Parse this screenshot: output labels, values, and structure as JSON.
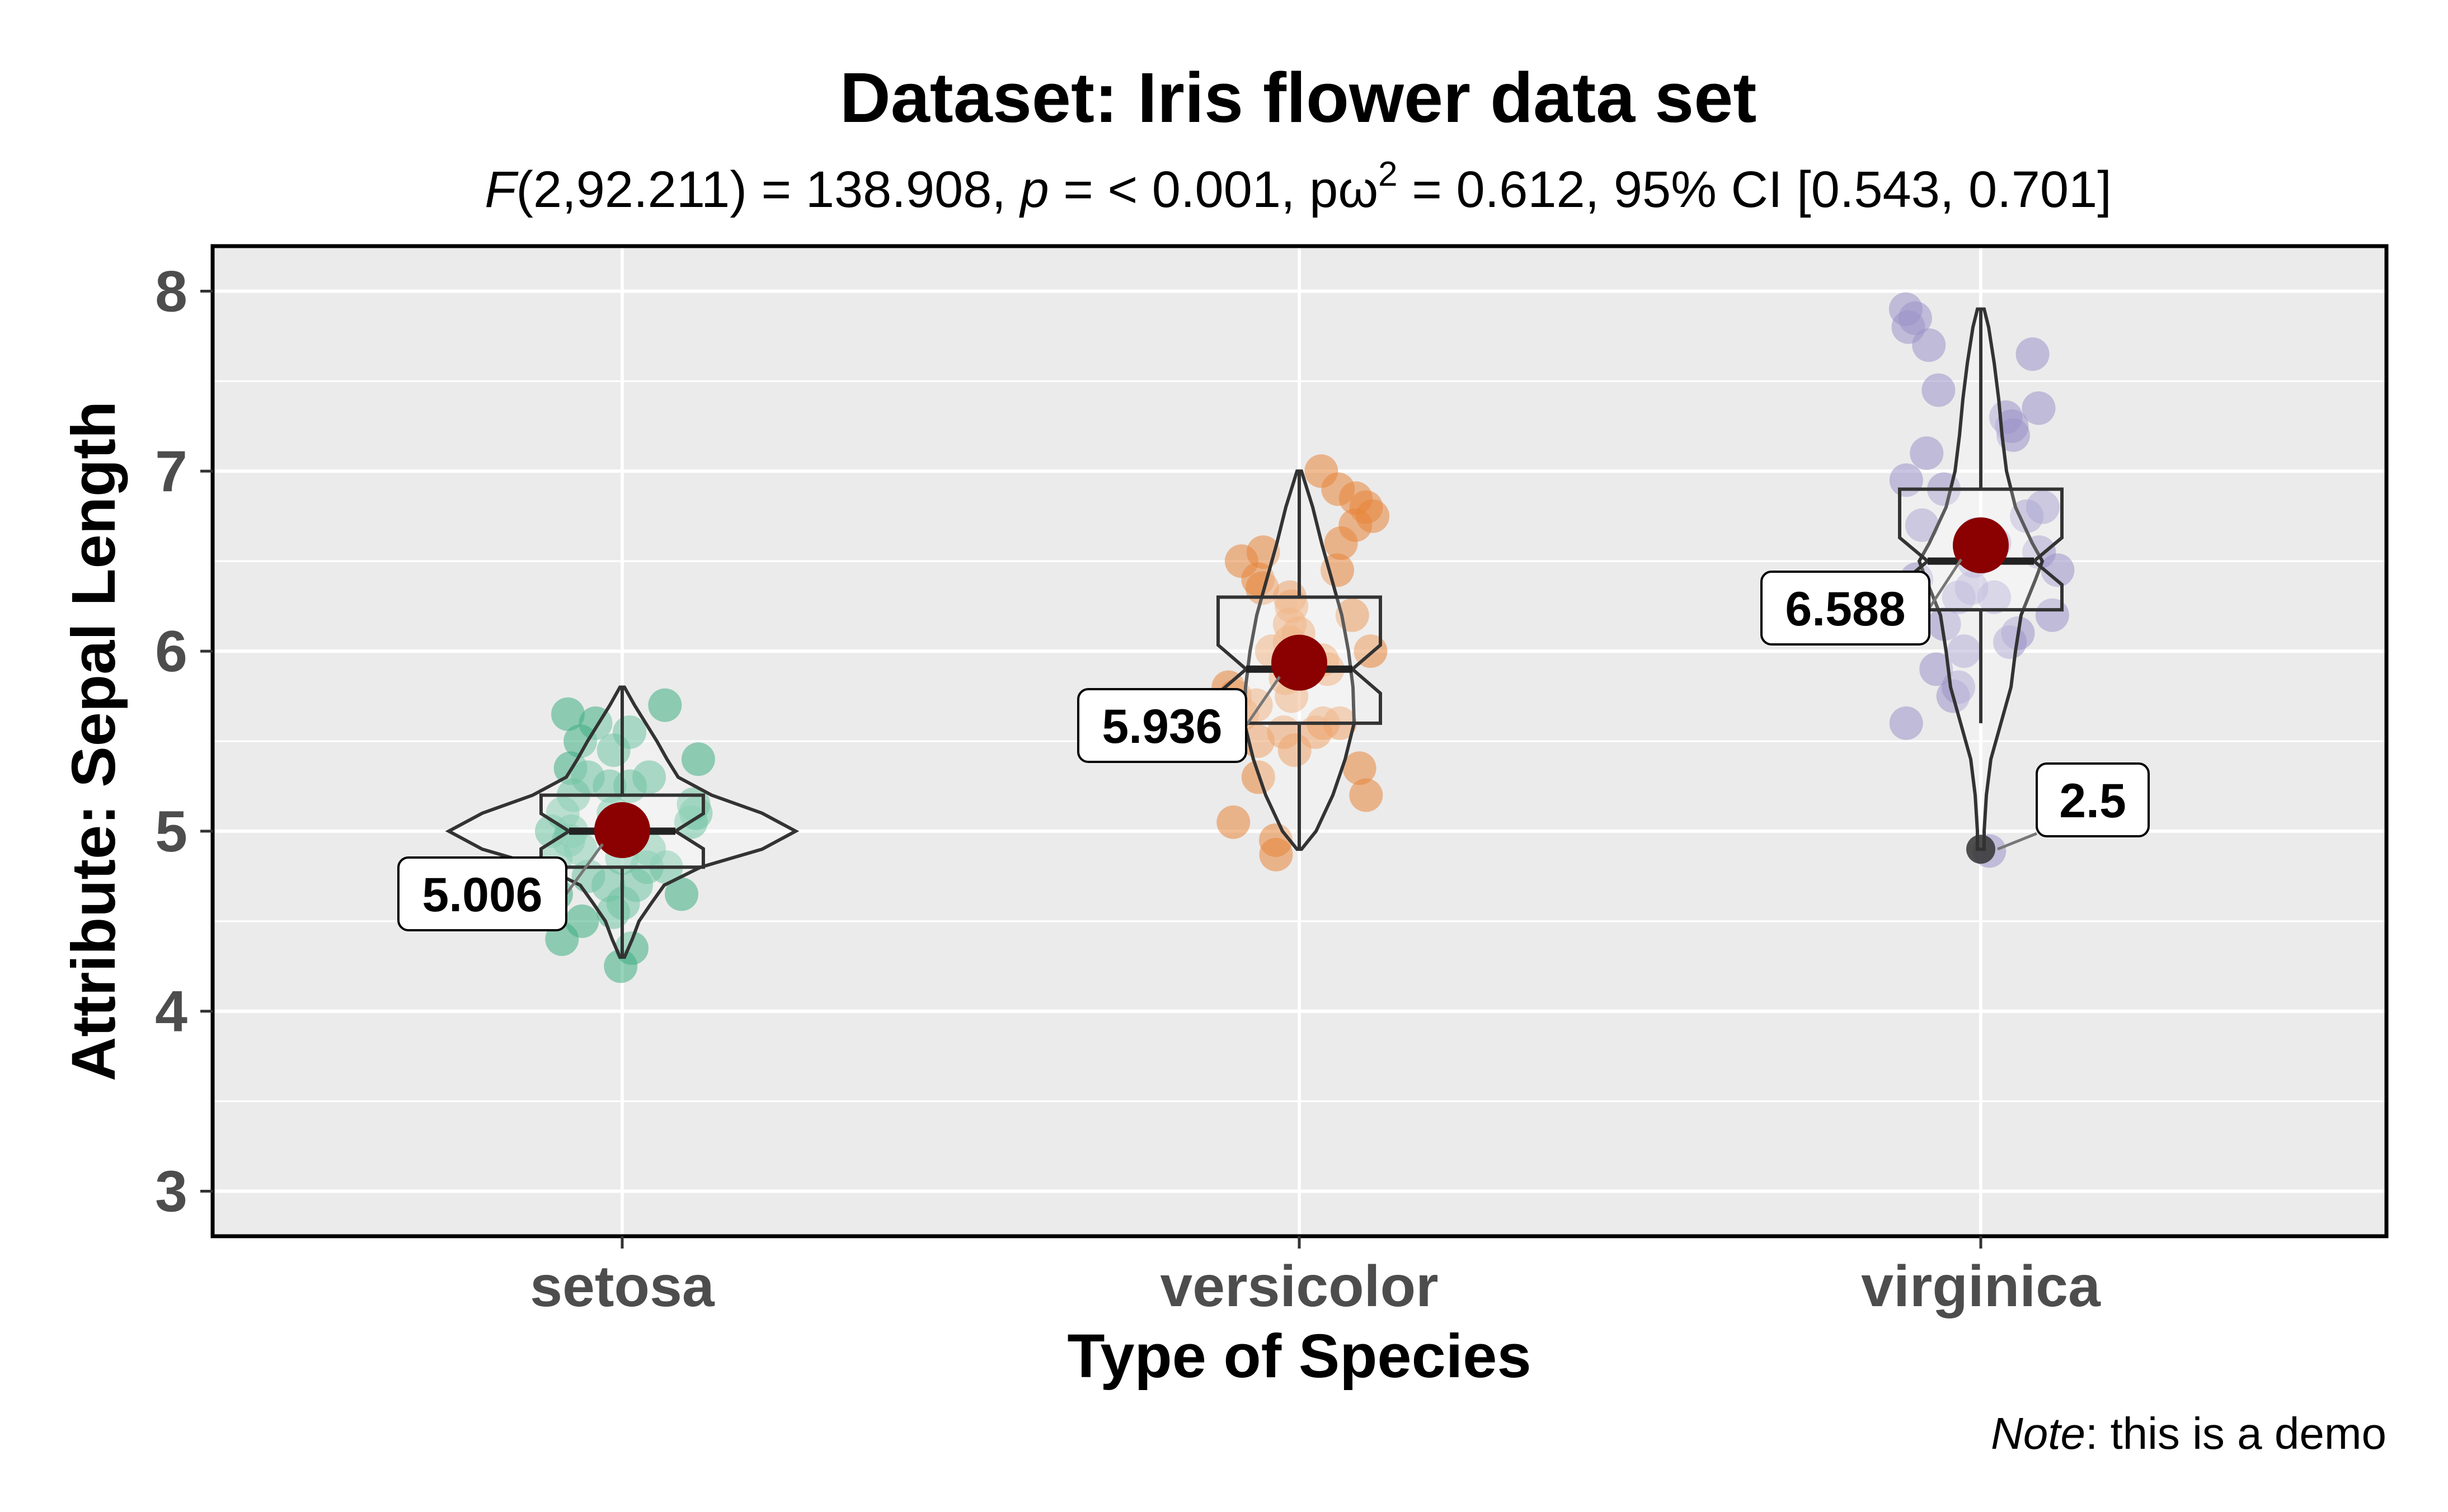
{
  "chart_data": {
    "type": "violin",
    "title": "Dataset: Iris flower data set",
    "subtitle": {
      "F_sym": "F",
      "F_rest": "(2,92.211) = 138.908, ",
      "p_sym": "p",
      "p_rest": " = < 0.001, pω",
      "sup": "2",
      "tail": " = 0.612, 95% CI [0.543, 0.701]"
    },
    "xlabel": "Type of Species",
    "ylabel": "Attribute: Sepal Length",
    "caption": {
      "note": "Note",
      "rest": ": this is a demo"
    },
    "ylim": [
      2.75,
      8.25
    ],
    "yticks": [
      "3",
      "4",
      "5",
      "6",
      "7",
      "8"
    ],
    "grid": true,
    "categories": [
      "setosa",
      "versicolor",
      "virginica"
    ],
    "colors": {
      "setosa": "#3fae84",
      "versicolor": "#e8853a",
      "virginica": "#9a93c8",
      "mean": "#8b0000",
      "panel": "#ebebeb",
      "outlier": "#333333"
    },
    "box": [
      {
        "q1": 4.8,
        "median": 5.0,
        "q3": 5.2,
        "min": 4.3,
        "max": 5.8
      },
      {
        "q1": 5.6,
        "median": 5.9,
        "q3": 6.3,
        "min": 4.9,
        "max": 7.0
      },
      {
        "q1": 6.23,
        "median": 6.5,
        "q3": 6.9,
        "min": 5.6,
        "max": 7.9
      }
    ],
    "means": [
      5.006,
      5.936,
      6.588
    ],
    "mean_labels": [
      "5.006",
      "5.936",
      "6.588"
    ],
    "outliers": [
      {
        "category": "virginica",
        "value": 4.9,
        "label": "2.5"
      }
    ],
    "points": {
      "setosa": [
        4.25,
        4.35,
        4.4,
        4.5,
        4.55,
        4.6,
        4.65,
        4.65,
        4.7,
        4.7,
        4.75,
        4.8,
        4.8,
        4.85,
        4.85,
        4.9,
        4.9,
        4.95,
        5.0,
        5.0,
        5.0,
        5.0,
        5.05,
        5.1,
        5.1,
        5.1,
        5.15,
        5.2,
        5.25,
        5.25,
        5.3,
        5.3,
        5.35,
        5.4,
        5.45,
        5.5,
        5.55,
        5.6,
        5.65,
        5.7
      ],
      "versicolor": [
        4.87,
        4.95,
        5.05,
        5.2,
        5.3,
        5.35,
        5.45,
        5.5,
        5.55,
        5.55,
        5.6,
        5.6,
        5.65,
        5.7,
        5.75,
        5.75,
        5.8,
        5.85,
        5.9,
        5.95,
        6.0,
        6.0,
        6.05,
        6.1,
        6.15,
        6.2,
        6.25,
        6.3,
        6.35,
        6.4,
        6.45,
        6.5,
        6.55,
        6.6,
        6.7,
        6.75,
        6.8,
        6.85,
        6.9,
        7.0
      ],
      "virginica": [
        4.89,
        5.6,
        5.75,
        5.8,
        5.9,
        6.0,
        6.05,
        6.1,
        6.15,
        6.2,
        6.25,
        6.3,
        6.3,
        6.35,
        6.4,
        6.45,
        6.5,
        6.55,
        6.6,
        6.65,
        6.7,
        6.75,
        6.8,
        6.9,
        6.95,
        7.1,
        7.2,
        7.25,
        7.3,
        7.35,
        7.45,
        7.65,
        7.7,
        7.8,
        7.85,
        7.9
      ]
    }
  }
}
